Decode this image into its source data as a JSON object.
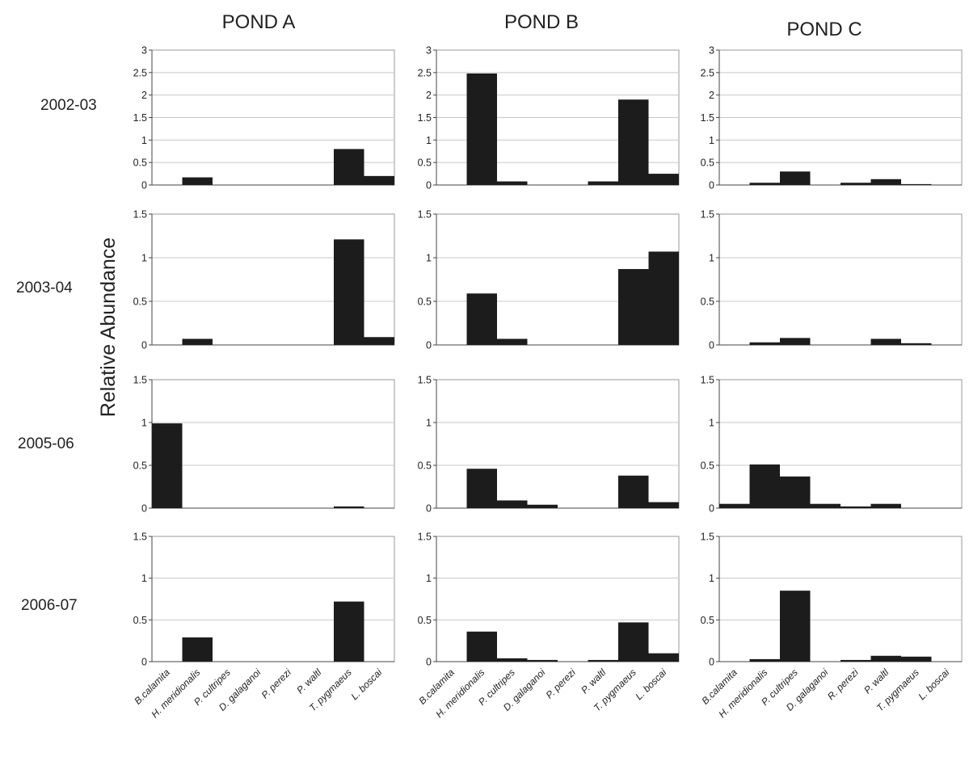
{
  "labels": {
    "ylabel": "Relative Abundance",
    "columns": [
      "POND A",
      "POND B",
      "POND C"
    ],
    "rows": [
      "2002-03",
      "2003-04",
      "2005-06",
      "2006-07"
    ]
  },
  "colors": {
    "bar": "#1c1c1c",
    "grid": "#c8c8c8",
    "frame": "#9a9a9a",
    "text": "#222222"
  },
  "chart_data": {
    "type": "bar",
    "ylabel": "Relative Abundance",
    "category_sets": {
      "A": [
        "B.calamita",
        "H. meridionalis",
        "P. cultripes",
        "D. galaganoi",
        "P. perezi",
        "P. waltl",
        "T. pygmaeus",
        "L. boscai"
      ],
      "B": [
        "B.calamita",
        "H. meridionalis",
        "P. cultripes",
        "D. galaganoi",
        "P. perezi",
        "P. waltl",
        "T. pygmaeus",
        "L. boscai"
      ],
      "C": [
        "B.calamita",
        "H. meridionalis",
        "P. cultripes",
        "D. galaganoi",
        "R. perezi",
        "P. waltl",
        "T. pygmaeus",
        "L. boscai"
      ]
    },
    "panels": [
      {
        "pond": "POND A",
        "period": "2002-03",
        "ylim": [
          0,
          3
        ],
        "yticks": [
          "0",
          "0.5",
          "1",
          "1.5",
          "2",
          "2.5",
          "3"
        ],
        "values": [
          0,
          0.17,
          0,
          0,
          0,
          0,
          0.8,
          0.2
        ]
      },
      {
        "pond": "POND B",
        "period": "2002-03",
        "ylim": [
          0,
          3
        ],
        "yticks": [
          "0",
          "0.5",
          "1",
          "1.5",
          "2",
          "2.5",
          "3"
        ],
        "values": [
          0,
          2.48,
          0.08,
          0,
          0,
          0.08,
          1.9,
          0.25
        ]
      },
      {
        "pond": "POND C",
        "period": "2002-03",
        "ylim": [
          0,
          3
        ],
        "yticks": [
          "0",
          "0.5",
          "1",
          "1.5",
          "2",
          "2.5",
          "3"
        ],
        "values": [
          0,
          0.05,
          0.3,
          0,
          0.05,
          0.13,
          0.02,
          0
        ]
      },
      {
        "pond": "POND A",
        "period": "2003-04",
        "ylim": [
          0,
          1.5
        ],
        "yticks": [
          "0",
          "0.5",
          "1",
          "1.5"
        ],
        "values": [
          0,
          0.07,
          0,
          0,
          0,
          0,
          1.21,
          0.09
        ]
      },
      {
        "pond": "POND B",
        "period": "2003-04",
        "ylim": [
          0,
          1.5
        ],
        "yticks": [
          "0",
          "0.5",
          "1",
          "1.5"
        ],
        "values": [
          0,
          0.59,
          0.07,
          0,
          0,
          0,
          0.87,
          1.07
        ]
      },
      {
        "pond": "POND C",
        "period": "2003-04",
        "ylim": [
          0,
          1.5
        ],
        "yticks": [
          "0",
          "0.5",
          "1",
          "1.5"
        ],
        "values": [
          0,
          0.03,
          0.08,
          0,
          0,
          0.07,
          0.02,
          0
        ]
      },
      {
        "pond": "POND A",
        "period": "2005-06",
        "ylim": [
          0,
          1.5
        ],
        "yticks": [
          "0",
          "0.5",
          "1",
          "1.5"
        ],
        "values": [
          0.99,
          0,
          0,
          0,
          0,
          0,
          0.02,
          0
        ]
      },
      {
        "pond": "POND B",
        "period": "2005-06",
        "ylim": [
          0,
          1.5
        ],
        "yticks": [
          "0",
          "0.5",
          "1",
          "1.5"
        ],
        "values": [
          0,
          0.46,
          0.09,
          0.04,
          0,
          0,
          0.38,
          0.07
        ]
      },
      {
        "pond": "POND C",
        "period": "2005-06",
        "ylim": [
          0,
          1.5
        ],
        "yticks": [
          "0",
          "0.5",
          "1",
          "1.5"
        ],
        "values": [
          0.05,
          0.51,
          0.37,
          0.05,
          0.02,
          0.05,
          0,
          0
        ]
      },
      {
        "pond": "POND A",
        "period": "2006-07",
        "ylim": [
          0,
          1.5
        ],
        "yticks": [
          "0",
          "0.5",
          "1",
          "1.5"
        ],
        "values": [
          0,
          0.29,
          0,
          0,
          0,
          0,
          0.72,
          0
        ]
      },
      {
        "pond": "POND B",
        "period": "2006-07",
        "ylim": [
          0,
          1.5
        ],
        "yticks": [
          "0",
          "0.5",
          "1",
          "1.5"
        ],
        "values": [
          0,
          0.36,
          0.04,
          0.02,
          0,
          0.02,
          0.47,
          0.1
        ]
      },
      {
        "pond": "POND C",
        "period": "2006-07",
        "ylim": [
          0,
          1.5
        ],
        "yticks": [
          "0",
          "0.5",
          "1",
          "1.5"
        ],
        "values": [
          0,
          0.03,
          0.85,
          0,
          0.02,
          0.07,
          0.06,
          0
        ]
      }
    ]
  }
}
